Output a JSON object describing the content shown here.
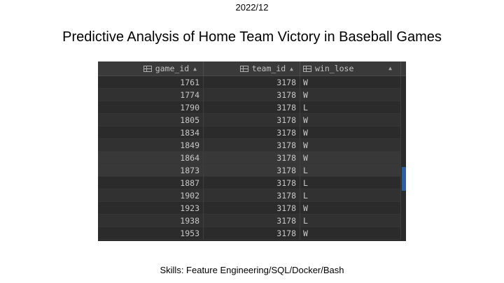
{
  "date": "2022/12",
  "title": "Predictive Analysis of Home Team Victory in Baseball Games",
  "skills": "Skills: Feature Engineering/SQL/Docker/Bash",
  "table": {
    "columns": [
      {
        "label": "game_id",
        "icon": "table-column-icon",
        "sort_icon": "sort-arrows-icon"
      },
      {
        "label": "team_id",
        "icon": "table-column-icon",
        "sort_icon": "sort-arrows-icon"
      },
      {
        "label": "win_lose",
        "icon": "table-column-icon",
        "sort_icon": "sort-arrows-icon"
      }
    ],
    "rows": [
      {
        "game_id": "1761",
        "team_id": "3178",
        "win_lose": "W"
      },
      {
        "game_id": "1774",
        "team_id": "3178",
        "win_lose": "W"
      },
      {
        "game_id": "1790",
        "team_id": "3178",
        "win_lose": "L"
      },
      {
        "game_id": "1805",
        "team_id": "3178",
        "win_lose": "W"
      },
      {
        "game_id": "1834",
        "team_id": "3178",
        "win_lose": "W"
      },
      {
        "game_id": "1849",
        "team_id": "3178",
        "win_lose": "W"
      },
      {
        "game_id": "1864",
        "team_id": "3178",
        "win_lose": "W"
      },
      {
        "game_id": "1873",
        "team_id": "3178",
        "win_lose": "L"
      },
      {
        "game_id": "1887",
        "team_id": "3178",
        "win_lose": "L"
      },
      {
        "game_id": "1902",
        "team_id": "3178",
        "win_lose": "L"
      },
      {
        "game_id": "1923",
        "team_id": "3178",
        "win_lose": "W"
      },
      {
        "game_id": "1938",
        "team_id": "3178",
        "win_lose": "L"
      },
      {
        "game_id": "1953",
        "team_id": "3178",
        "win_lose": "W"
      }
    ],
    "highlighted_rows": [
      6,
      7
    ],
    "colors": {
      "background": "#2b2b2b",
      "header": "#3a3a3a",
      "text": "#c8c8c8",
      "scrollbar_thumb": "#2f5f9e"
    }
  }
}
